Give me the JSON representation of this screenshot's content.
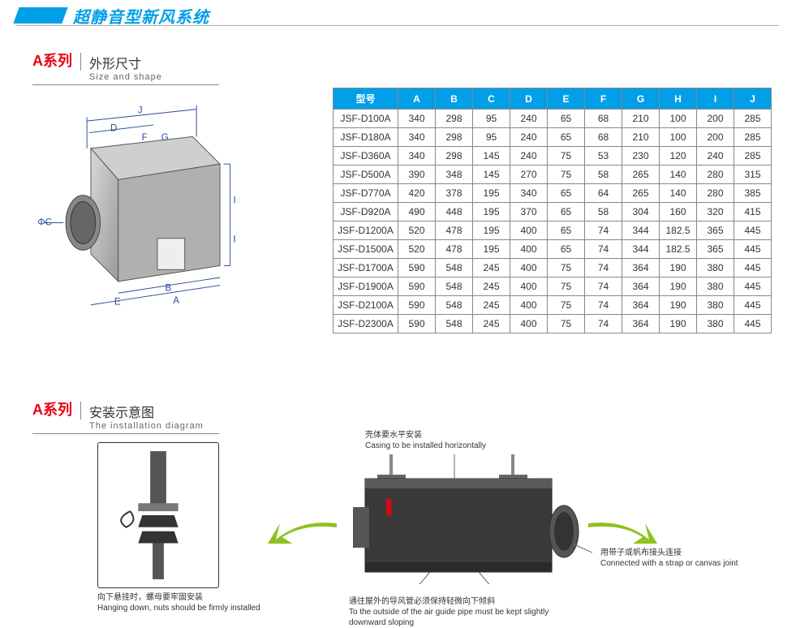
{
  "title": "超静音型新风系统",
  "sections": {
    "size": {
      "label": "A系列",
      "cn": "外形尺寸",
      "en": "Size and shape"
    },
    "install": {
      "label": "A系列",
      "cn": "安装示意图",
      "en": "The installation diagram"
    }
  },
  "dimension_labels": {
    "A": "A",
    "B": "B",
    "C": "ΦC",
    "D": "D",
    "E": "E",
    "F": "F",
    "G": "G",
    "H": "H",
    "I": "I",
    "J": "J"
  },
  "table": {
    "header_model": "型号",
    "columns": [
      "A",
      "B",
      "C",
      "D",
      "E",
      "F",
      "G",
      "H",
      "I",
      "J"
    ],
    "rows": [
      {
        "model": "JSF-D100A",
        "v": [
          "340",
          "298",
          "95",
          "240",
          "65",
          "68",
          "210",
          "100",
          "200",
          "285"
        ]
      },
      {
        "model": "JSF-D180A",
        "v": [
          "340",
          "298",
          "95",
          "240",
          "65",
          "68",
          "210",
          "100",
          "200",
          "285"
        ]
      },
      {
        "model": "JSF-D360A",
        "v": [
          "340",
          "298",
          "145",
          "240",
          "75",
          "53",
          "230",
          "120",
          "240",
          "285"
        ]
      },
      {
        "model": "JSF-D500A",
        "v": [
          "390",
          "348",
          "145",
          "270",
          "75",
          "58",
          "265",
          "140",
          "280",
          "315"
        ]
      },
      {
        "model": "JSF-D770A",
        "v": [
          "420",
          "378",
          "195",
          "340",
          "65",
          "64",
          "265",
          "140",
          "280",
          "385"
        ]
      },
      {
        "model": "JSF-D920A",
        "v": [
          "490",
          "448",
          "195",
          "370",
          "65",
          "58",
          "304",
          "160",
          "320",
          "415"
        ]
      },
      {
        "model": "JSF-D1200A",
        "v": [
          "520",
          "478",
          "195",
          "400",
          "65",
          "74",
          "344",
          "182.5",
          "365",
          "445"
        ]
      },
      {
        "model": "JSF-D1500A",
        "v": [
          "520",
          "478",
          "195",
          "400",
          "65",
          "74",
          "344",
          "182.5",
          "365",
          "445"
        ]
      },
      {
        "model": "JSF-D1700A",
        "v": [
          "590",
          "548",
          "245",
          "400",
          "75",
          "74",
          "364",
          "190",
          "380",
          "445"
        ]
      },
      {
        "model": "JSF-D1900A",
        "v": [
          "590",
          "548",
          "245",
          "400",
          "75",
          "74",
          "364",
          "190",
          "380",
          "445"
        ]
      },
      {
        "model": "JSF-D2100A",
        "v": [
          "590",
          "548",
          "245",
          "400",
          "75",
          "74",
          "364",
          "190",
          "380",
          "445"
        ]
      },
      {
        "model": "JSF-D2300A",
        "v": [
          "590",
          "548",
          "245",
          "400",
          "75",
          "74",
          "364",
          "190",
          "380",
          "445"
        ]
      }
    ]
  },
  "callouts": {
    "bolt_cn": "向下悬挂时，螺母要牢固安装",
    "bolt_en": "Hanging down, nuts should be firmly installed",
    "casing_cn": "壳体要水平安装",
    "casing_en": "Casing to be installed horizontally",
    "strap_cn": "用带子或帆布接头连接",
    "strap_en": "Connected with a strap or canvas joint",
    "pipe_cn": "通往屋外的导风管必须保持轻微向下倾斜",
    "pipe_en": "To the outside of the air guide pipe must be kept slightly downward sloping"
  },
  "colors": {
    "accent": "#009fe8",
    "red": "#e60012",
    "green": "#8dc21f",
    "box_fill": "#bdbdbd",
    "box_dark": "#4a4a4a"
  }
}
